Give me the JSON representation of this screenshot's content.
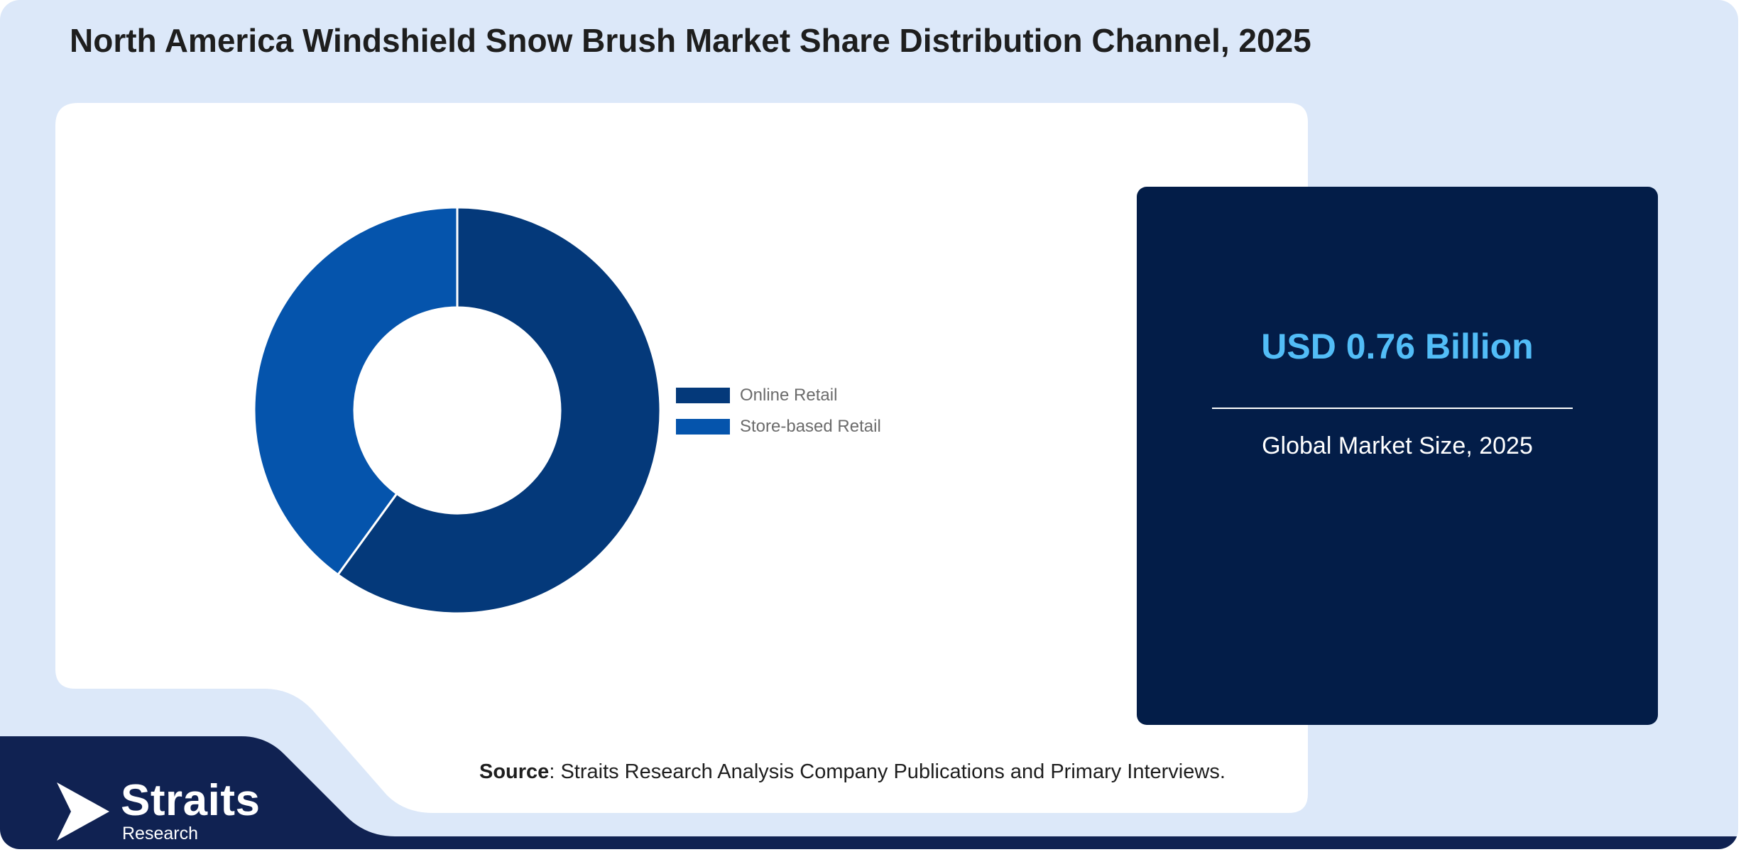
{
  "title": "North America Windshield Snow Brush Market Share Distribution Channel, 2025",
  "chart_data": {
    "type": "pie",
    "variant": "donut",
    "title": "North America Windshield Snow Brush Market Share Distribution Channel, 2025",
    "categories": [
      "Online Retail",
      "Store-based Retail"
    ],
    "values": [
      60,
      40
    ],
    "colors": [
      "#04397a",
      "#0554ac"
    ],
    "legend_position": "right"
  },
  "stat": {
    "value": "USD 0.76 Billion",
    "label": "Global Market Size, 2025"
  },
  "source": {
    "key": "Source",
    "text": ": Straits Research Analysis Company Publications and Primary Interviews."
  },
  "logo": {
    "name": "Straits",
    "sub": "Research"
  },
  "colors": {
    "background": "#dce8f9",
    "panel": "#ffffff",
    "stat_box": "#031d48",
    "stat_value": "#52bdf7",
    "footer": "#102252"
  }
}
